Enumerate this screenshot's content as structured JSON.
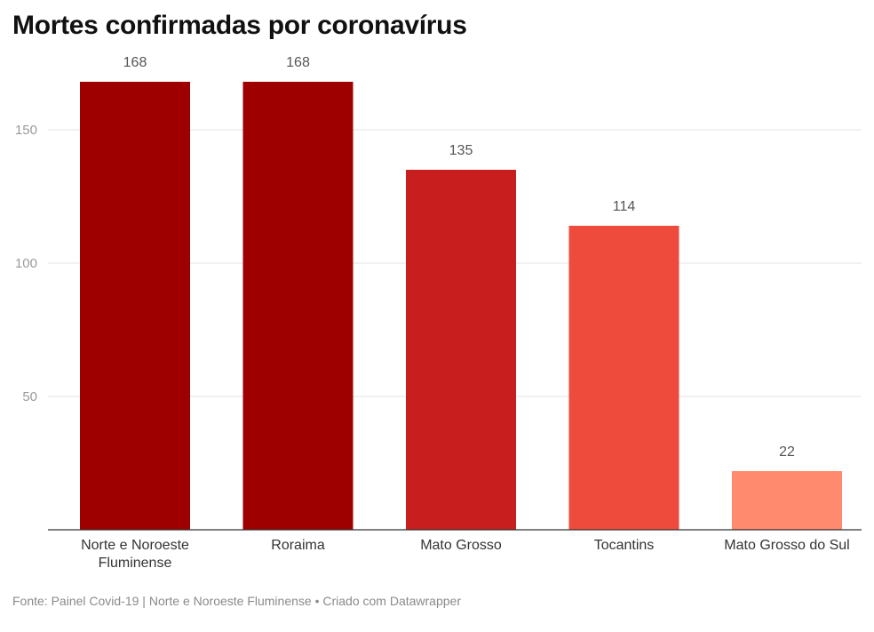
{
  "chart_data": {
    "type": "bar",
    "title": "Mortes confirmadas por coronavírus",
    "categories": [
      [
        "Norte e Noroeste",
        "Fluminense"
      ],
      [
        "Roraima"
      ],
      [
        "Mato Grosso"
      ],
      [
        "Tocantins"
      ],
      [
        "Mato Grosso do Sul"
      ]
    ],
    "values": [
      168,
      168,
      135,
      114,
      22
    ],
    "colors": [
      "#9e0000",
      "#9e0000",
      "#c81e1e",
      "#ef4b3c",
      "#ff8a6e"
    ],
    "yticks": [
      50,
      100,
      150
    ],
    "ylim": [
      0,
      180
    ],
    "grid": true,
    "xlabel": "",
    "ylabel": ""
  },
  "footer": "Fonte: Painel Covid-19 | Norte e Noroeste Fluminense • Criado com Datawrapper"
}
